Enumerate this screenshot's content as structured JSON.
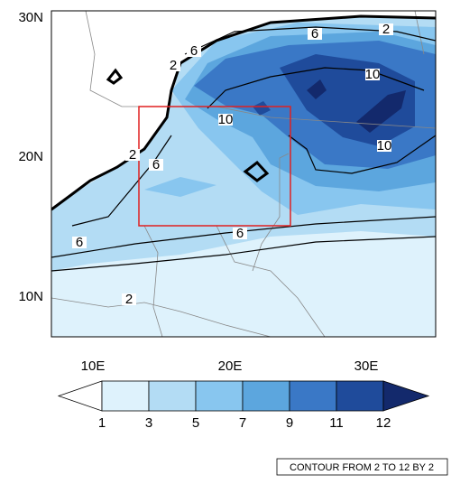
{
  "map": {
    "lat_labels": [
      "30N",
      "20N",
      "10N"
    ],
    "lon_labels": [
      "10E",
      "20E",
      "30E"
    ],
    "contour_labels": [
      "2",
      "6",
      "6",
      "2",
      "10",
      "10",
      "2",
      "6",
      "10",
      "6",
      "6",
      "2"
    ],
    "colorbar": {
      "labels": [
        1,
        3,
        5,
        7,
        9,
        11,
        12
      ],
      "colors": [
        "#ffffff",
        "#def2fc",
        "#b3dcf4",
        "#88c6ef",
        "#5ca6de",
        "#3a78c6",
        "#1f4b9b",
        "#13296c"
      ]
    },
    "footer": "CONTOUR FROM 2 TO 12 BY 2"
  }
}
